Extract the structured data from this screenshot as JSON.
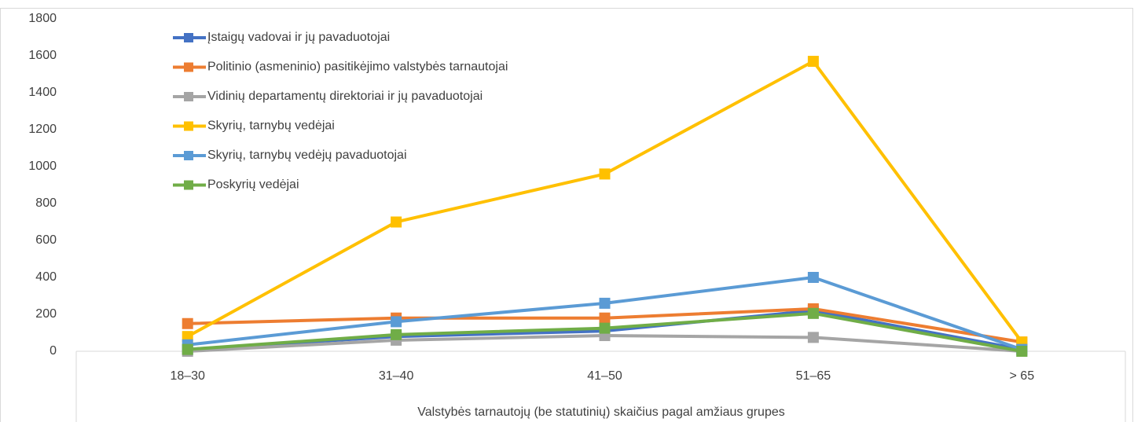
{
  "chart_data": {
    "type": "line",
    "xlabel": "Valstybės tarnautojų (be statutinių) skaičius pagal amžiaus grupes",
    "categories": [
      "18–30",
      "31–40",
      "41–50",
      "51–65",
      "> 65"
    ],
    "series": [
      {
        "name": "Įstaigų vadovai ir jų pavaduotojai",
        "color": "#4472c4",
        "values": [
          10,
          80,
          110,
          220,
          10
        ]
      },
      {
        "name": "Politinio (asmeninio) pasitikėjimo valstybės tarnautojai",
        "color": "#ed7d31",
        "values": [
          150,
          180,
          180,
          230,
          50
        ]
      },
      {
        "name": "Vidinių departamentų direktoriai ir jų pavaduotojai",
        "color": "#a5a5a5",
        "values": [
          0,
          60,
          85,
          75,
          0
        ]
      },
      {
        "name": "Skyrių, tarnybų vedėjai",
        "color": "#ffc000",
        "values": [
          80,
          700,
          960,
          1570,
          50
        ]
      },
      {
        "name": "Skyrių, tarnybų vedėjų pavaduotojai",
        "color": "#5b9bd5",
        "values": [
          35,
          160,
          260,
          400,
          10
        ]
      },
      {
        "name": "Poskyrių vedėjai",
        "color": "#70ad47",
        "values": [
          10,
          90,
          125,
          205,
          0
        ]
      }
    ],
    "ylim": [
      0,
      1800
    ],
    "yticks": [
      0,
      200,
      400,
      600,
      800,
      1000,
      1200,
      1400,
      1600,
      1800
    ],
    "legend": "upper left"
  }
}
